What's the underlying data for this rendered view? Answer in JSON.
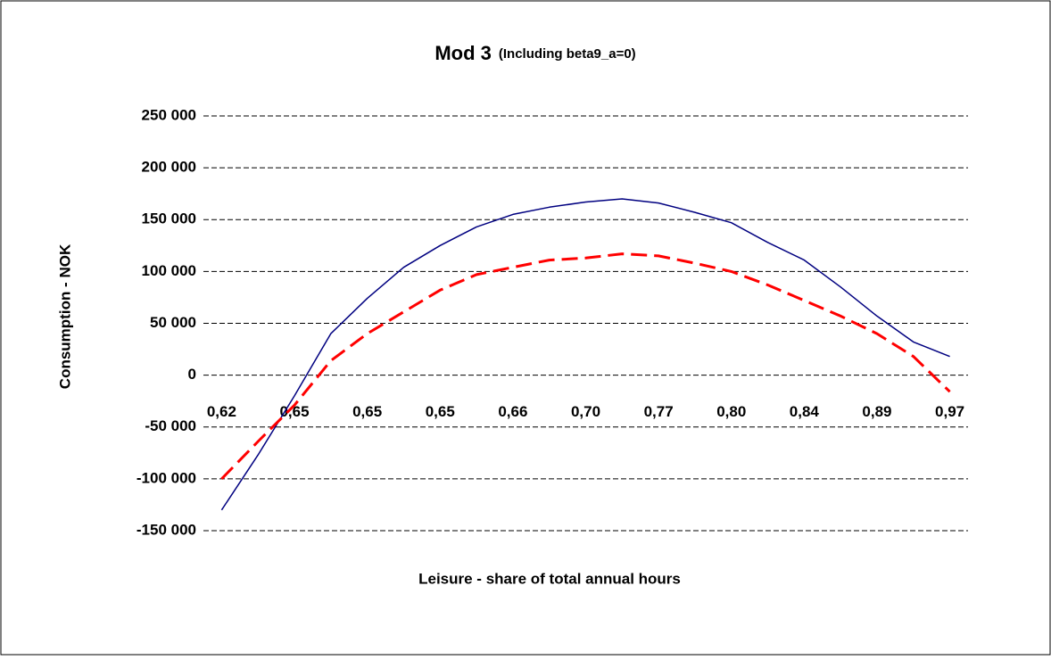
{
  "chart_data": {
    "type": "line",
    "title": "Mod 3",
    "subtitle": "(Including beta9_a=0)",
    "x_label": "Leisure - share of total annual hours",
    "y_label": "Consumption - NOK",
    "categories": [
      "0,62",
      null,
      "0,65",
      null,
      "0,65",
      null,
      "0,65",
      null,
      "0,66",
      null,
      "0,70",
      null,
      "0,77",
      null,
      "0,80",
      null,
      "0,84",
      null,
      "0,89",
      null,
      "0,97"
    ],
    "series": [
      {
        "color": "#000080",
        "dash": "solid",
        "values": [
          -130000,
          -77000,
          -20000,
          40000,
          74000,
          104000,
          125000,
          143000,
          155000,
          162000,
          167000,
          170000,
          166000,
          157000,
          147000,
          128000,
          111000,
          85000,
          57000,
          32000,
          18000
        ]
      },
      {
        "color": "#ff0000",
        "dash": "dashed",
        "values": [
          -100000,
          -64000,
          -29000,
          14000,
          40000,
          61000,
          82000,
          97000,
          104000,
          111000,
          113000,
          117000,
          115000,
          108000,
          100000,
          87000,
          72000,
          57000,
          40000,
          18000,
          -16000
        ]
      }
    ],
    "ylim": [
      -150000,
      250000
    ],
    "yticks": [
      {
        "value": -150000,
        "label": "-150 000"
      },
      {
        "value": -100000,
        "label": "-100 000"
      },
      {
        "value": -50000,
        "label": "-50 000"
      },
      0,
      {
        "value": 50000,
        "label": "50 000"
      },
      {
        "value": 100000,
        "label": "100 000"
      },
      {
        "value": 150000,
        "label": "150 000"
      },
      {
        "value": 200000,
        "label": "200 000"
      },
      {
        "value": 250000,
        "label": "250 000"
      }
    ],
    "grid": true
  }
}
